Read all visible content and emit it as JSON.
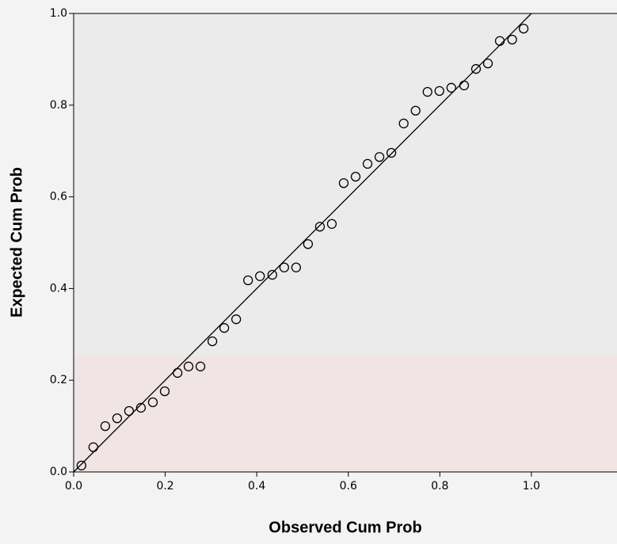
{
  "chart_data": {
    "type": "scatter",
    "x_label": "Observed Cum Prob",
    "y_label": "Expected Cum Prob",
    "xlim": [
      0,
      1.187
    ],
    "ylim": [
      0,
      1
    ],
    "xticks": [
      {
        "value": 0,
        "label": "0.0"
      },
      {
        "value": 0.2,
        "label": "0.2"
      },
      {
        "value": 0.4,
        "label": "0.4"
      },
      {
        "value": 0.6,
        "label": "0.6"
      },
      {
        "value": 0.8,
        "label": "0.8"
      },
      {
        "value": 1,
        "label": "1.0"
      }
    ],
    "yticks": [
      {
        "value": 0,
        "label": "0.0"
      },
      {
        "value": 0.2,
        "label": "0.2"
      },
      {
        "value": 0.4,
        "label": "0.4"
      },
      {
        "value": 0.6,
        "label": "0.6"
      },
      {
        "value": 0.8,
        "label": "0.8"
      },
      {
        "value": 1,
        "label": "1.0"
      }
    ],
    "color": "#000000",
    "x": [
      0.017,
      0.043,
      0.069,
      0.095,
      0.121,
      0.147,
      0.173,
      0.199,
      0.227,
      0.251,
      0.277,
      0.303,
      0.329,
      0.355,
      0.381,
      0.407,
      0.434,
      0.46,
      0.486,
      0.512,
      0.538,
      0.564,
      0.59,
      0.616,
      0.642,
      0.668,
      0.694,
      0.721,
      0.747,
      0.773,
      0.799,
      0.825,
      0.853,
      0.879,
      0.905,
      0.931,
      0.958,
      0.983
    ],
    "values": [
      0.014,
      0.054,
      0.1,
      0.117,
      0.133,
      0.14,
      0.152,
      0.176,
      0.216,
      0.23,
      0.23,
      0.285,
      0.314,
      0.333,
      0.418,
      0.427,
      0.43,
      0.446,
      0.446,
      0.497,
      0.535,
      0.541,
      0.63,
      0.644,
      0.672,
      0.687,
      0.696,
      0.76,
      0.788,
      0.829,
      0.831,
      0.838,
      0.843,
      0.879,
      0.891,
      0.94,
      0.943,
      0.967
    ]
  }
}
